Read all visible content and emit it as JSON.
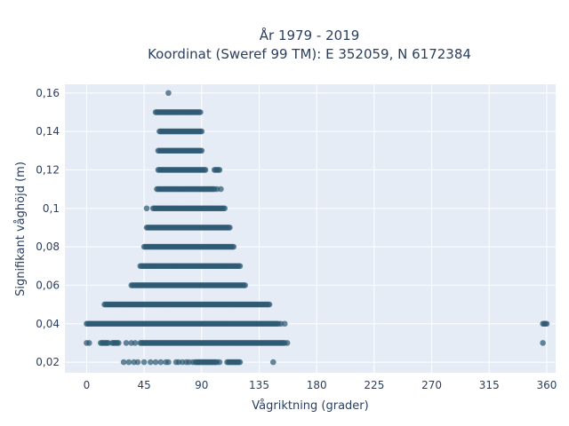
{
  "chart_data": {
    "type": "scatter",
    "title_line1": "År 1979 - 2019",
    "title_line2": "Koordinat (Sweref 99 TM): E 352059, N 6172384",
    "xlabel": "Vågriktning (grader)",
    "ylabel": "Signifikant våghöjd (m)",
    "xlim": [
      -17,
      367
    ],
    "ylim": [
      0.0145,
      0.1645
    ],
    "xticks": [
      0,
      45,
      90,
      135,
      180,
      225,
      270,
      315,
      360
    ],
    "xtick_labels": [
      "0",
      "45",
      "90",
      "135",
      "180",
      "225",
      "270",
      "315",
      "360"
    ],
    "yticks": [
      0.02,
      0.04,
      0.06,
      0.08,
      0.1,
      0.12,
      0.14,
      0.16
    ],
    "ytick_labels": [
      "0,02",
      "0,04",
      "0,06",
      "0,08",
      "0,1",
      "0,12",
      "0,14",
      "0,16"
    ],
    "grid": true,
    "colors": {
      "marker": "#2e5a73",
      "plot_bg": "#e5ecf6",
      "grid": "#ffffff",
      "text": "#2a3f5f"
    },
    "rows": [
      {
        "y": 0.02,
        "segments": [
          [
            29,
            29
          ],
          [
            33,
            33
          ],
          [
            37,
            37
          ],
          [
            40,
            40
          ],
          [
            45,
            45
          ],
          [
            50,
            50
          ],
          [
            54,
            54
          ],
          [
            58,
            58
          ],
          [
            62,
            62
          ],
          [
            64,
            64
          ],
          [
            70,
            70
          ],
          [
            72,
            72
          ],
          [
            75,
            75
          ],
          [
            78,
            78
          ],
          [
            80,
            80
          ],
          [
            83,
            83
          ],
          [
            85,
            102
          ],
          [
            104,
            104
          ],
          [
            110,
            120
          ],
          [
            146,
            146
          ]
        ]
      },
      {
        "y": 0.03,
        "segments": [
          [
            0,
            0
          ],
          [
            2,
            2
          ],
          [
            11,
            17
          ],
          [
            20,
            25
          ],
          [
            31,
            31
          ],
          [
            35,
            35
          ],
          [
            38,
            38
          ],
          [
            42,
            155
          ],
          [
            157,
            157
          ],
          [
            357,
            357
          ]
        ]
      },
      {
        "y": 0.04,
        "segments": [
          [
            0,
            150
          ],
          [
            152,
            152
          ],
          [
            155,
            155
          ],
          [
            357,
            360
          ]
        ]
      },
      {
        "y": 0.05,
        "segments": [
          [
            14,
            143
          ]
        ]
      },
      {
        "y": 0.06,
        "segments": [
          [
            35,
            124
          ]
        ]
      },
      {
        "y": 0.07,
        "segments": [
          [
            42,
            120
          ]
        ]
      },
      {
        "y": 0.08,
        "segments": [
          [
            45,
            115
          ]
        ]
      },
      {
        "y": 0.09,
        "segments": [
          [
            47,
            112
          ]
        ]
      },
      {
        "y": 0.1,
        "segments": [
          [
            47,
            47
          ],
          [
            52,
            108
          ]
        ]
      },
      {
        "y": 0.11,
        "segments": [
          [
            55,
            100
          ],
          [
            102,
            102
          ],
          [
            105,
            105
          ]
        ]
      },
      {
        "y": 0.12,
        "segments": [
          [
            56,
            93
          ],
          [
            100,
            104
          ]
        ]
      },
      {
        "y": 0.13,
        "segments": [
          [
            56,
            90
          ]
        ]
      },
      {
        "y": 0.14,
        "segments": [
          [
            57,
            90
          ]
        ]
      },
      {
        "y": 0.15,
        "segments": [
          [
            54,
            89
          ]
        ]
      },
      {
        "y": 0.16,
        "segments": [
          [
            64,
            64
          ]
        ]
      }
    ]
  }
}
